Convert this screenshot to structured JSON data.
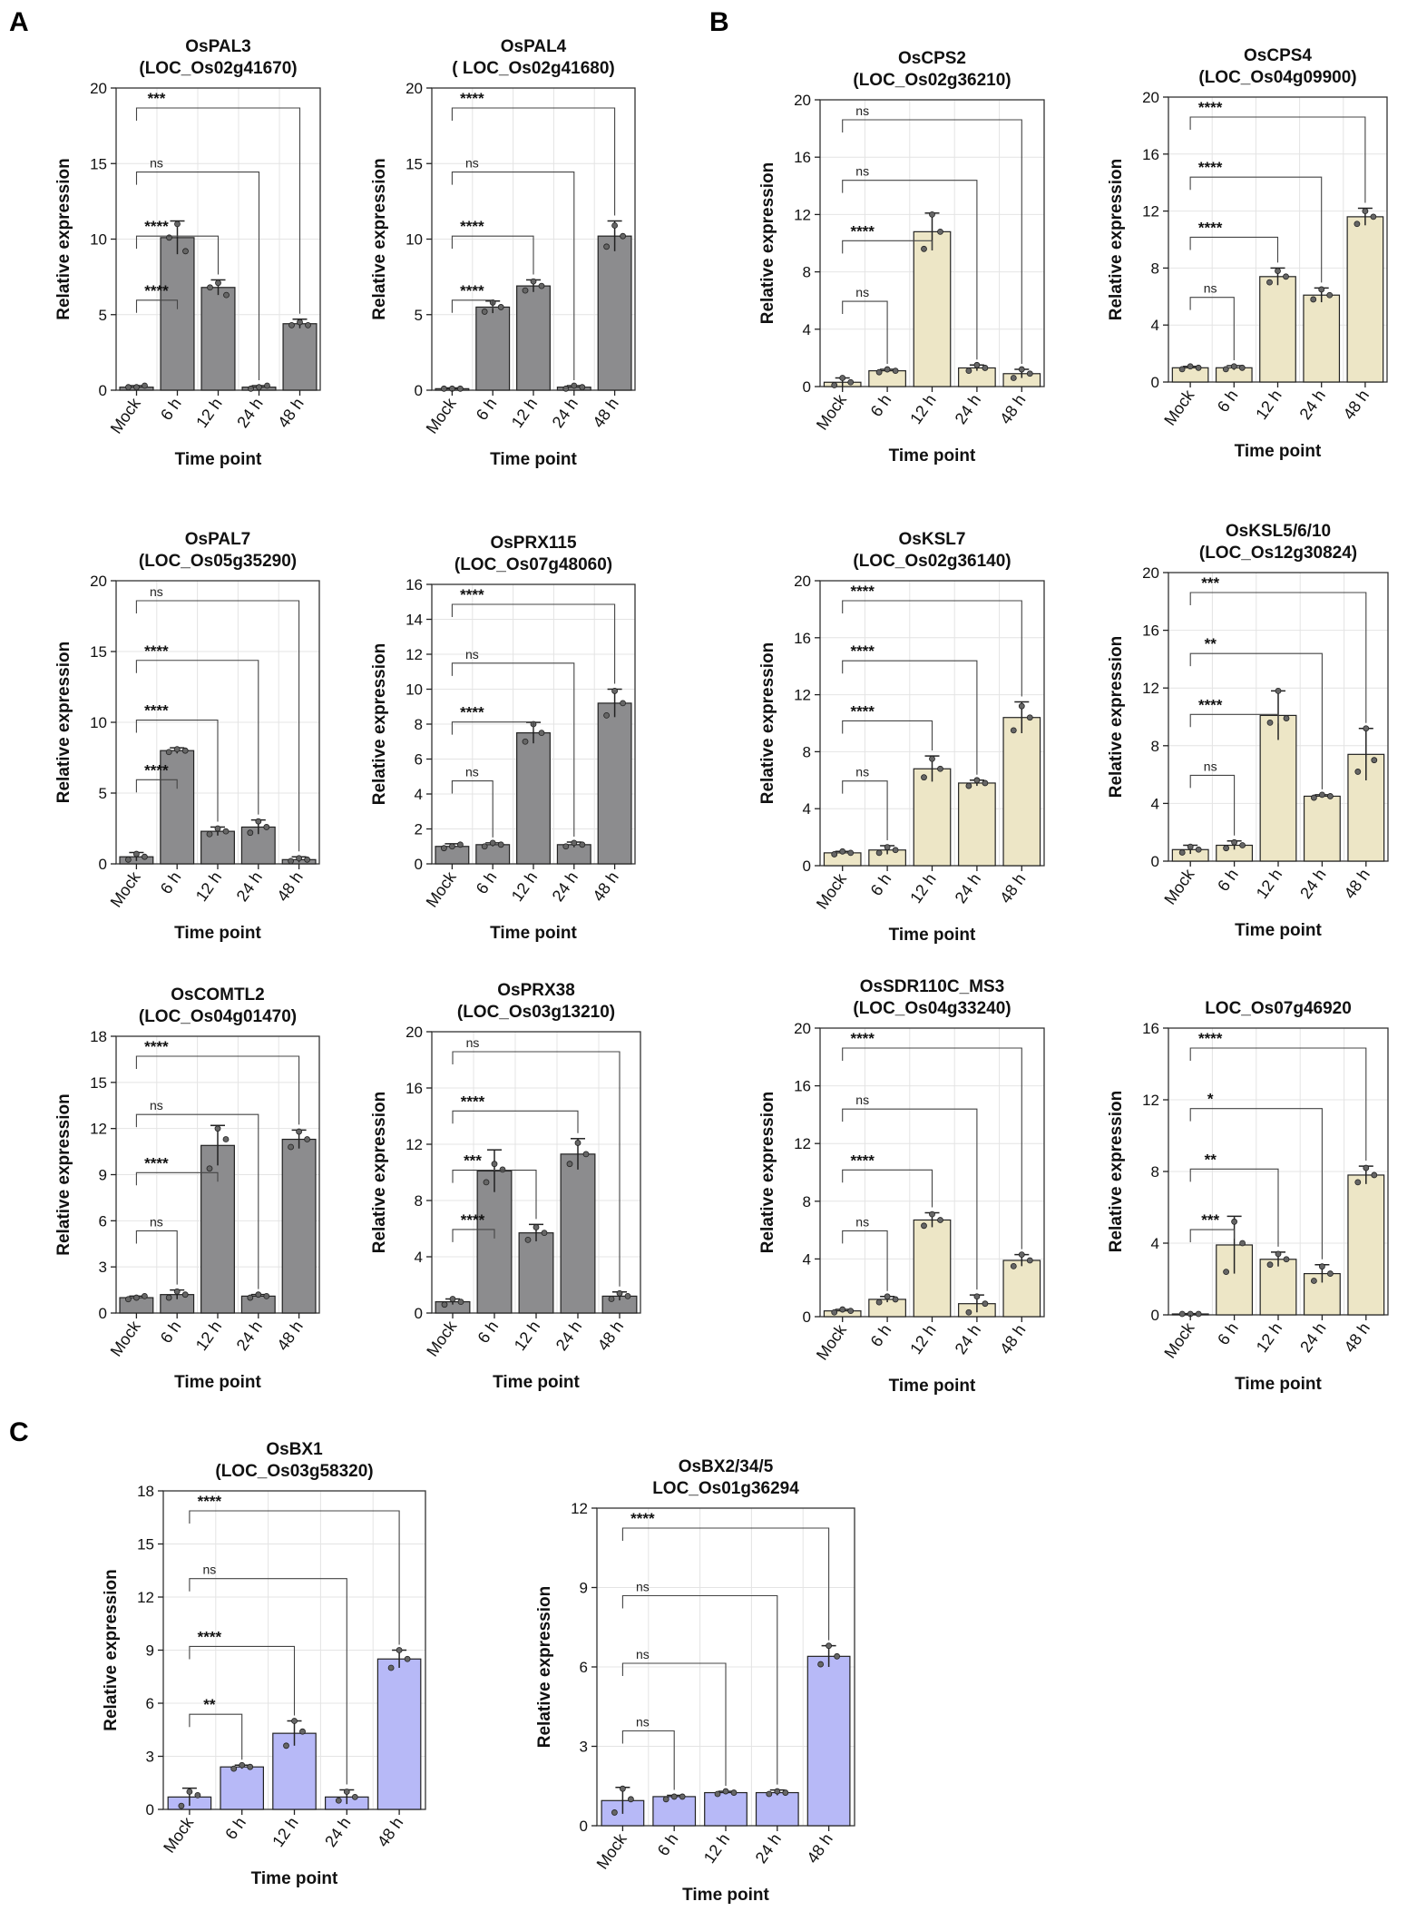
{
  "panel_labels": [
    "A",
    "B",
    "C"
  ],
  "colors": {
    "grey": "#8c8c8e",
    "cream": "#ede6c6",
    "lavender": "#b7b9f7"
  },
  "chart_data": [
    {
      "type": "bar",
      "panel": "A",
      "color": "grey",
      "title": [
        "OsPAL3",
        "(LOC_Os02g41670)"
      ],
      "xlabel": "Time point",
      "ylabel": "Relative expression",
      "ylim": [
        0,
        20
      ],
      "yticks": [
        0,
        5,
        10,
        15,
        20
      ],
      "categories": [
        "Mock",
        "6 h",
        "12 h",
        "24 h",
        "48 h"
      ],
      "values": [
        0.2,
        10.1,
        6.8,
        0.2,
        4.4
      ],
      "errors": [
        0.1,
        1.1,
        0.5,
        0.1,
        0.3
      ],
      "points": [
        [
          0.2,
          0.2,
          0.3
        ],
        [
          10.1,
          11.0,
          9.2
        ],
        [
          6.8,
          7.1,
          6.3
        ],
        [
          0.1,
          0.2,
          0.3
        ],
        [
          4.3,
          4.5,
          4.3
        ]
      ],
      "comparisons": [
        {
          "to": "6 h",
          "label": "****"
        },
        {
          "to": "12 h",
          "label": "****"
        },
        {
          "to": "24 h",
          "label": "ns"
        },
        {
          "to": "48 h",
          "label": "***"
        }
      ]
    },
    {
      "type": "bar",
      "panel": "A",
      "color": "grey",
      "title": [
        "OsPAL4",
        "( LOC_Os02g41680)"
      ],
      "xlabel": "Time point",
      "ylabel": "Relative expression",
      "ylim": [
        0,
        20
      ],
      "yticks": [
        0,
        5,
        10,
        15,
        20
      ],
      "categories": [
        "Mock",
        "6 h",
        "12 h",
        "24 h",
        "48 h"
      ],
      "values": [
        0.1,
        5.5,
        6.9,
        0.2,
        10.2
      ],
      "errors": [
        0.05,
        0.4,
        0.4,
        0.1,
        1.0
      ],
      "points": [
        [
          0.1,
          0.1,
          0.1
        ],
        [
          5.2,
          5.8,
          5.5
        ],
        [
          6.6,
          7.2,
          6.9
        ],
        [
          0.1,
          0.3,
          0.2
        ],
        [
          9.5,
          10.9,
          10.2
        ]
      ],
      "comparisons": [
        {
          "to": "6 h",
          "label": "****"
        },
        {
          "to": "12 h",
          "label": "****"
        },
        {
          "to": "24 h",
          "label": "ns"
        },
        {
          "to": "48 h",
          "label": "****"
        }
      ]
    },
    {
      "type": "bar",
      "panel": "A",
      "color": "grey",
      "title": [
        "OsPAL7",
        "(LOC_Os05g35290)"
      ],
      "xlabel": "Time point",
      "ylabel": "Relative expression",
      "ylim": [
        0,
        20
      ],
      "yticks": [
        0,
        5,
        10,
        15,
        20
      ],
      "categories": [
        "Mock",
        "6 h",
        "12 h",
        "24 h",
        "48 h"
      ],
      "values": [
        0.5,
        8.0,
        2.3,
        2.6,
        0.3
      ],
      "errors": [
        0.3,
        0.2,
        0.3,
        0.5,
        0.2
      ],
      "points": [
        [
          0.3,
          0.7,
          0.5
        ],
        [
          7.9,
          8.1,
          8.0
        ],
        [
          2.1,
          2.5,
          2.3
        ],
        [
          2.2,
          3.0,
          2.6
        ],
        [
          0.2,
          0.4,
          0.3
        ]
      ],
      "comparisons": [
        {
          "to": "6 h",
          "label": "****"
        },
        {
          "to": "12 h",
          "label": "****"
        },
        {
          "to": "24 h",
          "label": "****"
        },
        {
          "to": "48 h",
          "label": "ns"
        }
      ]
    },
    {
      "type": "bar",
      "panel": "A",
      "color": "grey",
      "title": [
        "OsPRX115",
        "(LOC_Os07g48060)"
      ],
      "xlabel": "Time point",
      "ylabel": "Relative expression",
      "ylim": [
        0,
        16
      ],
      "yticks": [
        0,
        2,
        4,
        6,
        8,
        10,
        12,
        14,
        16
      ],
      "categories": [
        "Mock",
        "6 h",
        "12 h",
        "24 h",
        "48 h"
      ],
      "values": [
        1.0,
        1.1,
        7.5,
        1.1,
        9.2
      ],
      "errors": [
        0.15,
        0.1,
        0.6,
        0.15,
        0.8
      ],
      "points": [
        [
          0.9,
          1.0,
          1.1
        ],
        [
          1.0,
          1.2,
          1.1
        ],
        [
          7.0,
          8.0,
          7.5
        ],
        [
          1.0,
          1.2,
          1.1
        ],
        [
          8.5,
          9.9,
          9.2
        ]
      ],
      "comparisons": [
        {
          "to": "6 h",
          "label": "ns"
        },
        {
          "to": "12 h",
          "label": "****"
        },
        {
          "to": "24 h",
          "label": "ns"
        },
        {
          "to": "48 h",
          "label": "****"
        }
      ]
    },
    {
      "type": "bar",
      "panel": "A",
      "color": "grey",
      "title": [
        "OsCOMTL2",
        "(LOC_Os04g01470)"
      ],
      "xlabel": "Time point",
      "ylabel": "Relative expression",
      "ylim": [
        0,
        18
      ],
      "yticks": [
        0,
        3,
        6,
        9,
        12,
        15,
        18
      ],
      "categories": [
        "Mock",
        "6 h",
        "12 h",
        "24 h",
        "48 h"
      ],
      "values": [
        1.0,
        1.2,
        10.9,
        1.1,
        11.3
      ],
      "errors": [
        0.1,
        0.3,
        1.3,
        0.1,
        0.6
      ],
      "points": [
        [
          0.9,
          1.0,
          1.1
        ],
        [
          1.0,
          1.4,
          1.2
        ],
        [
          9.4,
          12.0,
          11.3
        ],
        [
          1.0,
          1.2,
          1.1
        ],
        [
          10.8,
          11.8,
          11.3
        ]
      ],
      "comparisons": [
        {
          "to": "6 h",
          "label": "ns"
        },
        {
          "to": "12 h",
          "label": "****"
        },
        {
          "to": "24 h",
          "label": "ns"
        },
        {
          "to": "48 h",
          "label": "****"
        }
      ]
    },
    {
      "type": "bar",
      "panel": "A",
      "color": "grey",
      "title": [
        "OsPRX38",
        "(LOC_Os03g13210)"
      ],
      "xlabel": "Time point",
      "ylabel": "Relative expression",
      "ylim": [
        0,
        20
      ],
      "yticks": [
        0,
        4,
        8,
        12,
        16,
        20
      ],
      "categories": [
        "Mock",
        "6 h",
        "12 h",
        "24 h",
        "48 h"
      ],
      "values": [
        0.8,
        10.1,
        5.7,
        11.3,
        1.2
      ],
      "errors": [
        0.2,
        1.5,
        0.6,
        1.1,
        0.3
      ],
      "points": [
        [
          0.6,
          1.0,
          0.8
        ],
        [
          9.3,
          10.6,
          10.2
        ],
        [
          5.2,
          6.1,
          5.7
        ],
        [
          10.6,
          12.1,
          11.3
        ],
        [
          1.0,
          1.4,
          1.2
        ]
      ],
      "comparisons": [
        {
          "to": "6 h",
          "label": "****"
        },
        {
          "to": "12 h",
          "label": "***"
        },
        {
          "to": "24 h",
          "label": "****"
        },
        {
          "to": "48 h",
          "label": "ns"
        }
      ]
    },
    {
      "type": "bar",
      "panel": "B",
      "color": "cream",
      "title": [
        "OsCPS2",
        "(LOC_Os02g36210)"
      ],
      "xlabel": "Time point",
      "ylabel": "Relative expression",
      "ylim": [
        0,
        20
      ],
      "yticks": [
        0,
        4,
        8,
        12,
        16,
        20
      ],
      "categories": [
        "Mock",
        "6 h",
        "12 h",
        "24 h",
        "48 h"
      ],
      "values": [
        0.3,
        1.1,
        10.8,
        1.3,
        0.9
      ],
      "errors": [
        0.3,
        0.1,
        1.3,
        0.2,
        0.3
      ],
      "points": [
        [
          0.1,
          0.6,
          0.3
        ],
        [
          1.0,
          1.2,
          1.1
        ],
        [
          9.6,
          12.0,
          10.8
        ],
        [
          1.1,
          1.5,
          1.3
        ],
        [
          0.6,
          1.2,
          0.9
        ]
      ],
      "comparisons": [
        {
          "to": "6 h",
          "label": "ns"
        },
        {
          "to": "12 h",
          "label": "****"
        },
        {
          "to": "24 h",
          "label": "ns"
        },
        {
          "to": "48 h",
          "label": "ns"
        }
      ]
    },
    {
      "type": "bar",
      "panel": "B",
      "color": "cream",
      "title": [
        "OsCPS4",
        "(LOC_Os04g09900)"
      ],
      "xlabel": "Time point",
      "ylabel": "Relative expression",
      "ylim": [
        0,
        20
      ],
      "yticks": [
        0,
        4,
        8,
        12,
        16,
        20
      ],
      "categories": [
        "Mock",
        "6 h",
        "12 h",
        "24 h",
        "48 h"
      ],
      "values": [
        1.0,
        1.0,
        7.4,
        6.1,
        11.6
      ],
      "errors": [
        0.1,
        0.15,
        0.6,
        0.5,
        0.6
      ],
      "points": [
        [
          0.9,
          1.1,
          1.0
        ],
        [
          0.9,
          1.1,
          1.0
        ],
        [
          7.0,
          7.8,
          7.4
        ],
        [
          5.8,
          6.5,
          6.1
        ],
        [
          11.1,
          12.0,
          11.6
        ]
      ],
      "comparisons": [
        {
          "to": "6 h",
          "label": "ns"
        },
        {
          "to": "12 h",
          "label": "****"
        },
        {
          "to": "24 h",
          "label": "****"
        },
        {
          "to": "48 h",
          "label": "****"
        }
      ]
    },
    {
      "type": "bar",
      "panel": "B",
      "color": "cream",
      "title": [
        "OsKSL7",
        "(LOC_Os02g36140)"
      ],
      "xlabel": "Time point",
      "ylabel": "Relative expression",
      "ylim": [
        0,
        20
      ],
      "yticks": [
        0,
        4,
        8,
        12,
        16,
        20
      ],
      "categories": [
        "Mock",
        "6 h",
        "12 h",
        "24 h",
        "48 h"
      ],
      "values": [
        0.9,
        1.1,
        6.8,
        5.8,
        10.4
      ],
      "errors": [
        0.1,
        0.3,
        0.9,
        0.2,
        1.1
      ],
      "points": [
        [
          0.8,
          1.0,
          0.9
        ],
        [
          0.9,
          1.3,
          1.1
        ],
        [
          6.2,
          7.5,
          6.8
        ],
        [
          5.6,
          6.0,
          5.8
        ],
        [
          9.5,
          11.2,
          10.4
        ]
      ],
      "comparisons": [
        {
          "to": "6 h",
          "label": "ns"
        },
        {
          "to": "12 h",
          "label": "****"
        },
        {
          "to": "24 h",
          "label": "****"
        },
        {
          "to": "48 h",
          "label": "****"
        }
      ]
    },
    {
      "type": "bar",
      "panel": "B",
      "color": "cream",
      "title": [
        "OsKSL5/6/10",
        "(LOC_Os12g30824)"
      ],
      "xlabel": "Time point",
      "ylabel": "Relative expression",
      "ylim": [
        0,
        20
      ],
      "yticks": [
        0,
        4,
        8,
        12,
        16,
        20
      ],
      "categories": [
        "Mock",
        "6 h",
        "12 h",
        "24 h",
        "48 h"
      ],
      "values": [
        0.8,
        1.1,
        10.1,
        4.5,
        7.4
      ],
      "errors": [
        0.3,
        0.3,
        1.7,
        0.1,
        1.8
      ],
      "points": [
        [
          0.6,
          1.0,
          0.8
        ],
        [
          0.9,
          1.3,
          1.1
        ],
        [
          9.6,
          11.8,
          9.9
        ],
        [
          4.4,
          4.6,
          4.5
        ],
        [
          6.2,
          9.2,
          7.0
        ]
      ],
      "comparisons": [
        {
          "to": "6 h",
          "label": "ns"
        },
        {
          "to": "12 h",
          "label": "****"
        },
        {
          "to": "24 h",
          "label": "**"
        },
        {
          "to": "48 h",
          "label": "***"
        }
      ]
    },
    {
      "type": "bar",
      "panel": "B",
      "color": "cream",
      "title": [
        "OsSDR110C_MS3",
        "(LOC_Os04g33240)"
      ],
      "xlabel": "Time point",
      "ylabel": "Relative expression",
      "ylim": [
        0,
        20
      ],
      "yticks": [
        0,
        4,
        8,
        12,
        16,
        20
      ],
      "categories": [
        "Mock",
        "6 h",
        "12 h",
        "24 h",
        "48 h"
      ],
      "values": [
        0.4,
        1.2,
        6.7,
        0.9,
        3.9
      ],
      "errors": [
        0.1,
        0.2,
        0.5,
        0.6,
        0.4
      ],
      "points": [
        [
          0.3,
          0.5,
          0.4
        ],
        [
          1.0,
          1.4,
          1.2
        ],
        [
          6.3,
          7.1,
          6.7
        ],
        [
          0.3,
          1.4,
          0.9
        ],
        [
          3.5,
          4.3,
          3.9
        ]
      ],
      "comparisons": [
        {
          "to": "6 h",
          "label": "ns"
        },
        {
          "to": "12 h",
          "label": "****"
        },
        {
          "to": "24 h",
          "label": "ns"
        },
        {
          "to": "48 h",
          "label": "****"
        }
      ]
    },
    {
      "type": "bar",
      "panel": "B",
      "color": "cream",
      "title": [
        "LOC_Os07g46920"
      ],
      "xlabel": "Time point",
      "ylabel": "Relative expression",
      "ylim": [
        0,
        16
      ],
      "yticks": [
        0,
        4,
        8,
        12,
        16
      ],
      "categories": [
        "Mock",
        "6 h",
        "12 h",
        "24 h",
        "48 h"
      ],
      "values": [
        0.05,
        3.9,
        3.1,
        2.3,
        7.8
      ],
      "errors": [
        0.02,
        1.6,
        0.4,
        0.5,
        0.5
      ],
      "points": [
        [
          0.05,
          0.05,
          0.05
        ],
        [
          2.4,
          5.2,
          4.0
        ],
        [
          2.8,
          3.4,
          3.1
        ],
        [
          1.9,
          2.7,
          2.3
        ],
        [
          7.4,
          8.2,
          7.8
        ]
      ],
      "comparisons": [
        {
          "to": "6 h",
          "label": "***"
        },
        {
          "to": "12 h",
          "label": "**"
        },
        {
          "to": "24 h",
          "label": "*"
        },
        {
          "to": "48 h",
          "label": "****"
        }
      ]
    },
    {
      "type": "bar",
      "panel": "C",
      "color": "lavender",
      "title": [
        "OsBX1",
        "(LOC_Os03g58320)"
      ],
      "xlabel": "Time point",
      "ylabel": "Relative expression",
      "ylim": [
        0,
        18
      ],
      "yticks": [
        0,
        3,
        6,
        9,
        12,
        15,
        18
      ],
      "categories": [
        "Mock",
        "6 h",
        "12 h",
        "24 h",
        "48 h"
      ],
      "values": [
        0.7,
        2.4,
        4.3,
        0.7,
        8.5
      ],
      "errors": [
        0.5,
        0.1,
        0.7,
        0.4,
        0.5
      ],
      "points": [
        [
          0.2,
          1.0,
          0.8
        ],
        [
          2.3,
          2.5,
          2.4
        ],
        [
          3.6,
          5.0,
          4.4
        ],
        [
          0.5,
          1.0,
          0.7
        ],
        [
          8.0,
          9.0,
          8.5
        ]
      ],
      "comparisons": [
        {
          "to": "6 h",
          "label": "**"
        },
        {
          "to": "12 h",
          "label": "****"
        },
        {
          "to": "24 h",
          "label": "ns"
        },
        {
          "to": "48 h",
          "label": "****"
        }
      ]
    },
    {
      "type": "bar",
      "panel": "C",
      "color": "lavender",
      "title": [
        "OsBX2/34/5",
        "LOC_Os01g36294"
      ],
      "xlabel": "Time point",
      "ylabel": "Relative expression",
      "ylim": [
        0,
        12
      ],
      "yticks": [
        0,
        3,
        6,
        9,
        12
      ],
      "categories": [
        "Mock",
        "6 h",
        "12 h",
        "24 h",
        "48 h"
      ],
      "values": [
        0.95,
        1.1,
        1.25,
        1.25,
        6.4
      ],
      "errors": [
        0.5,
        0.05,
        0.05,
        0.1,
        0.4
      ],
      "points": [
        [
          0.5,
          1.4,
          1.0
        ],
        [
          1.0,
          1.1,
          1.1
        ],
        [
          1.2,
          1.3,
          1.25
        ],
        [
          1.2,
          1.3,
          1.25
        ],
        [
          6.1,
          6.8,
          6.4
        ]
      ],
      "comparisons": [
        {
          "to": "6 h",
          "label": "ns"
        },
        {
          "to": "12 h",
          "label": "ns"
        },
        {
          "to": "24 h",
          "label": "ns"
        },
        {
          "to": "48 h",
          "label": "****"
        }
      ]
    }
  ]
}
